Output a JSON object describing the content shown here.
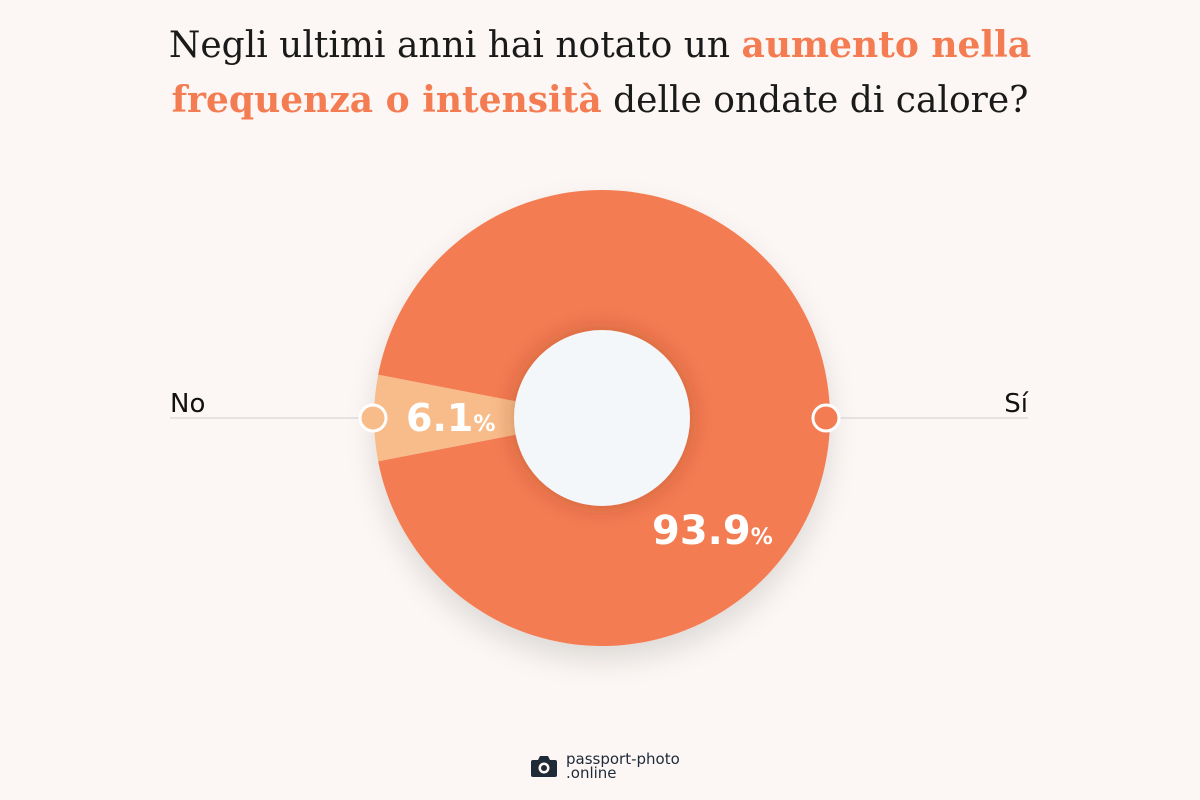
{
  "title": {
    "part1": "Negli ultimi anni hai notato un ",
    "highlight1": "aumento nella",
    "highlight2": "frequenza o intensità",
    "part2": " delle ondate di calore?"
  },
  "chart_data": {
    "type": "pie",
    "variant": "donut",
    "title": "Negli ultimi anni hai notato un aumento nella frequenza o intensità delle ondate di calore?",
    "categories": [
      "No",
      "Sí"
    ],
    "values": [
      6.1,
      93.9
    ],
    "unit": "%",
    "labels": [
      "6.1",
      "93.9"
    ],
    "colors": [
      "#f8bc8a",
      "#f47c52"
    ],
    "hole_color": "#f4f7fa"
  },
  "footer": {
    "logo_line1": "passport-photo",
    "logo_line2": ".online",
    "logo_icon": "camera-icon"
  }
}
